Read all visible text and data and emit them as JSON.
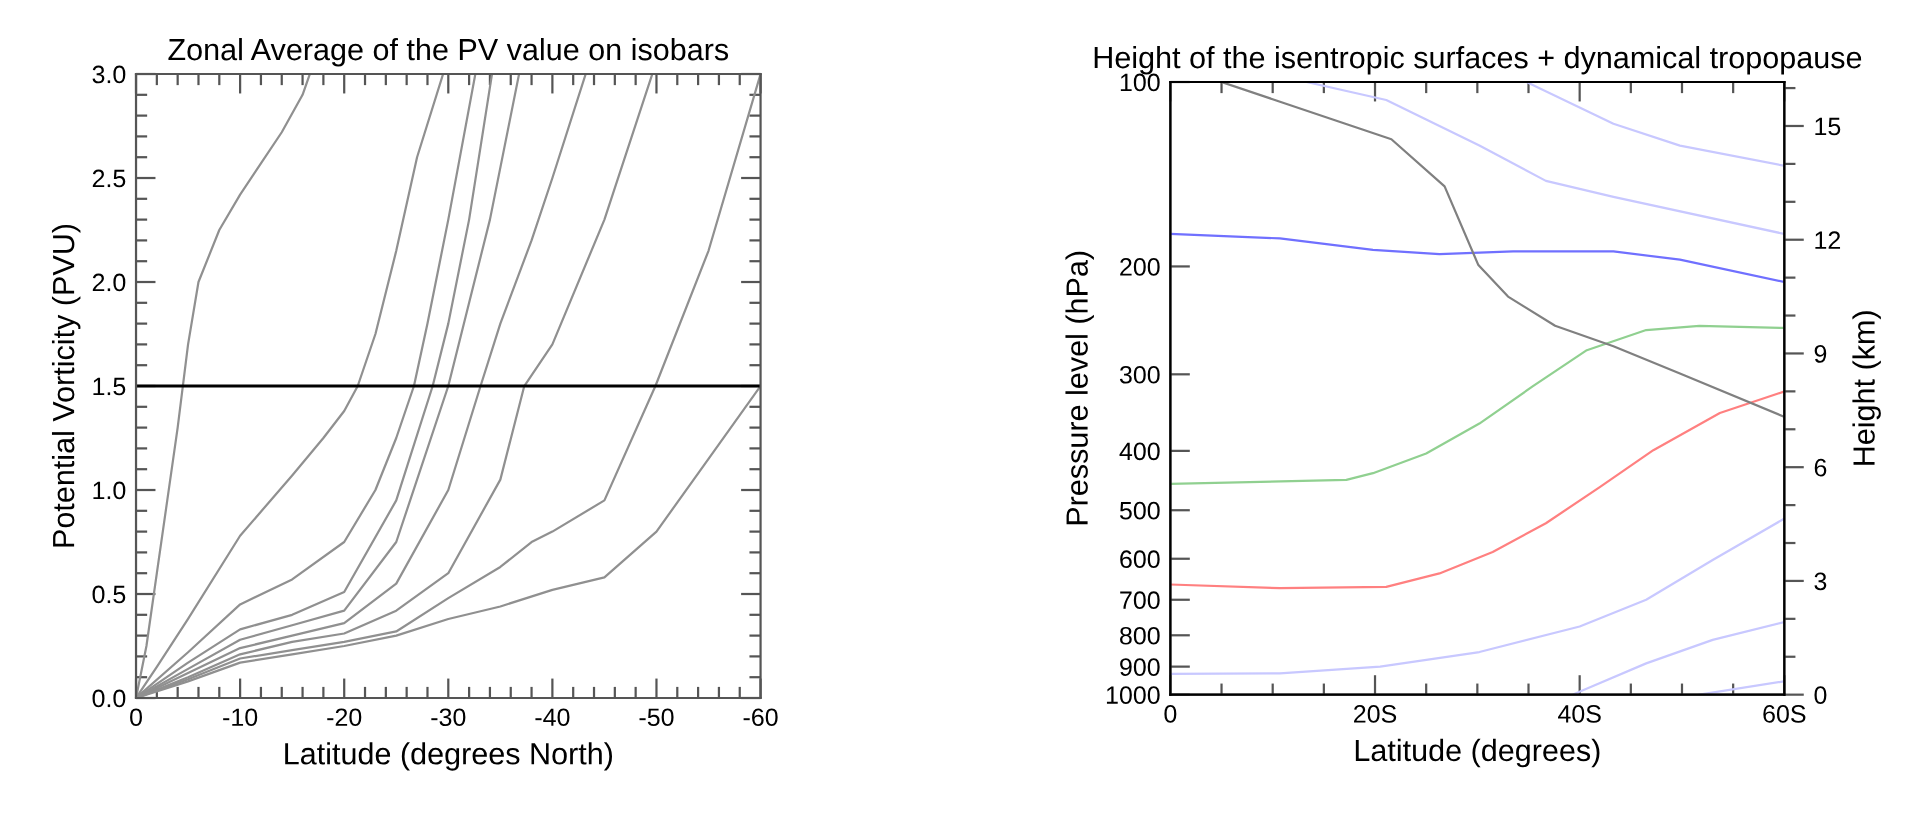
{
  "chart_data": [
    {
      "type": "line",
      "title": "Zonal Average of the PV value on isobars",
      "xlabel": "Latitude (degrees North)",
      "ylabel": "Potential Vorticity (PVU)",
      "xlim": [
        0,
        -60
      ],
      "ylim": [
        0.0,
        3.0
      ],
      "xticks": [
        0,
        -10,
        -20,
        -30,
        -40,
        -50,
        -60,
        {
          "value": -2,
          "label": null
        },
        {
          "value": -4,
          "label": null
        },
        {
          "value": -6,
          "label": null
        },
        {
          "value": -8,
          "label": null
        },
        {
          "value": -12,
          "label": null
        },
        {
          "value": -14,
          "label": null
        },
        {
          "value": -16,
          "label": null
        },
        {
          "value": -18,
          "label": null
        },
        {
          "value": -22,
          "label": null
        },
        {
          "value": -24,
          "label": null
        },
        {
          "value": -26,
          "label": null
        },
        {
          "value": -28,
          "label": null
        },
        {
          "value": -32,
          "label": null
        },
        {
          "value": -34,
          "label": null
        },
        {
          "value": -36,
          "label": null
        },
        {
          "value": -38,
          "label": null
        },
        {
          "value": -42,
          "label": null
        },
        {
          "value": -44,
          "label": null
        },
        {
          "value": -46,
          "label": null
        },
        {
          "value": -48,
          "label": null
        },
        {
          "value": -52,
          "label": null
        },
        {
          "value": -54,
          "label": null
        },
        {
          "value": -56,
          "label": null
        },
        {
          "value": -58,
          "label": null
        }
      ],
      "yticks": [
        {
          "value": 0,
          "label": "0.0"
        },
        0.5,
        {
          "value": 1,
          "label": "1.0"
        },
        1.5,
        {
          "value": 2,
          "label": "2.0"
        },
        2.5,
        {
          "value": 3,
          "label": "3.0"
        },
        {
          "value": 0.1,
          "label": null
        },
        {
          "value": 0.2,
          "label": null
        },
        {
          "value": 0.3,
          "label": null
        },
        {
          "value": 0.4,
          "label": null
        },
        {
          "value": 0.6,
          "label": null
        },
        {
          "value": 0.7,
          "label": null
        },
        {
          "value": 0.8,
          "label": null
        },
        {
          "value": 0.9,
          "label": null
        },
        {
          "value": 1.1,
          "label": null
        },
        {
          "value": 1.2,
          "label": null
        },
        {
          "value": 1.3,
          "label": null
        },
        {
          "value": 1.4,
          "label": null
        },
        {
          "value": 1.6,
          "label": null
        },
        {
          "value": 1.7,
          "label": null
        },
        {
          "value": 1.8,
          "label": null
        },
        {
          "value": 1.9,
          "label": null
        },
        {
          "value": 2.1,
          "label": null
        },
        {
          "value": 2.2,
          "label": null
        },
        {
          "value": 2.3,
          "label": null
        },
        {
          "value": 2.4,
          "label": null
        },
        {
          "value": 2.6,
          "label": null
        },
        {
          "value": 2.7,
          "label": null
        },
        {
          "value": 2.8,
          "label": null
        },
        {
          "value": 2.9,
          "label": null
        }
      ],
      "ref_lines": [
        {
          "axis": "y",
          "value": 1.5,
          "color": "#000000"
        }
      ],
      "series": [
        {
          "color": "#909090",
          "x": [
            0,
            -1,
            -2,
            -3,
            -4,
            -5,
            -6,
            -8,
            -10,
            -12,
            -14,
            -16,
            -16.7
          ],
          "values": [
            0,
            0.25,
            0.6,
            0.95,
            1.3,
            1.7,
            2.0,
            2.25,
            2.42,
            2.57,
            2.72,
            2.9,
            3.0
          ]
        },
        {
          "color": "#909090",
          "x": [
            0,
            -2,
            -5,
            -10,
            -15,
            -18,
            -20,
            -21.3,
            -23,
            -25,
            -27,
            -29.5
          ],
          "values": [
            0,
            0.15,
            0.38,
            0.78,
            1.07,
            1.25,
            1.38,
            1.5,
            1.75,
            2.15,
            2.6,
            3.0
          ]
        },
        {
          "color": "#909090",
          "x": [
            0,
            -5,
            -10,
            -15,
            -20,
            -23,
            -25,
            -26.7,
            -28,
            -30,
            -32.6
          ],
          "values": [
            0,
            0.22,
            0.45,
            0.57,
            0.75,
            1.0,
            1.25,
            1.5,
            1.8,
            2.3,
            3.0
          ]
        },
        {
          "color": "#909090",
          "x": [
            0,
            -5,
            -10,
            -15,
            -20,
            -25,
            -28.5,
            -30,
            -32,
            -34.2
          ],
          "values": [
            0,
            0.17,
            0.33,
            0.4,
            0.51,
            0.95,
            1.5,
            1.8,
            2.3,
            3.0
          ]
        },
        {
          "color": "#909090",
          "x": [
            0,
            -5,
            -10,
            -15,
            -20,
            -25,
            -30,
            -32,
            -34,
            -36.8
          ],
          "values": [
            0,
            0.14,
            0.28,
            0.35,
            0.42,
            0.75,
            1.5,
            1.9,
            2.3,
            3.0
          ]
        },
        {
          "color": "#909090",
          "x": [
            0,
            -5,
            -10,
            -15,
            -20,
            -25,
            -30,
            -33.1,
            -35,
            -38,
            -40,
            -43.2
          ],
          "values": [
            0,
            0.12,
            0.24,
            0.3,
            0.36,
            0.55,
            1.0,
            1.5,
            1.8,
            2.2,
            2.5,
            3.0
          ]
        },
        {
          "color": "#909090",
          "x": [
            0,
            -5,
            -10,
            -15,
            -20,
            -25,
            -30,
            -35,
            -37.3,
            -40,
            -45,
            -49.6
          ],
          "values": [
            0,
            0.1,
            0.21,
            0.27,
            0.31,
            0.42,
            0.6,
            1.05,
            1.5,
            1.7,
            2.3,
            3.0
          ]
        },
        {
          "color": "#909090",
          "x": [
            0,
            -5,
            -10,
            -15,
            -20,
            -25,
            -30,
            -35,
            -38,
            -40,
            -45,
            -49.9,
            -55,
            -60
          ],
          "values": [
            0,
            0.09,
            0.19,
            0.23,
            0.27,
            0.32,
            0.48,
            0.63,
            0.75,
            0.8,
            0.95,
            1.5,
            2.15,
            3.0
          ]
        },
        {
          "color": "#909090",
          "x": [
            0,
            -5,
            -10,
            -15,
            -20,
            -25,
            -30,
            -35,
            -40,
            -45,
            -50,
            -55,
            -60
          ],
          "values": [
            0,
            0.08,
            0.17,
            0.21,
            0.25,
            0.3,
            0.38,
            0.44,
            0.52,
            0.58,
            0.8,
            1.15,
            1.5
          ]
        }
      ]
    },
    {
      "type": "line",
      "title": "Height of the isentropic surfaces + dynamical tropopause",
      "xlabel": "Latitude (degrees)",
      "ylabel": "Pressure level (hPa)",
      "y2label": "Height (km)",
      "log": "y",
      "xlim": [
        0,
        60
      ],
      "ylim": [
        1000,
        100
      ],
      "xticks": [
        0,
        {
          "value": 20,
          "label": "20S"
        },
        {
          "value": 40,
          "label": "40S"
        },
        {
          "value": 60,
          "label": "60S"
        },
        {
          "value": 5,
          "label": null
        },
        {
          "value": 10,
          "label": null
        },
        {
          "value": 15,
          "label": null
        },
        {
          "value": 25,
          "label": null
        },
        {
          "value": 30,
          "label": null
        },
        {
          "value": 35,
          "label": null
        },
        {
          "value": 45,
          "label": null
        },
        {
          "value": 50,
          "label": null
        },
        {
          "value": 55,
          "label": null
        }
      ],
      "yticks": [
        100,
        200,
        300,
        400,
        500,
        600,
        700,
        800,
        900,
        1000
      ],
      "y2lim": [
        0,
        16.16
      ],
      "y2ticks": [
        0,
        3,
        6,
        9,
        12,
        15,
        {
          "value": 1,
          "label": null
        },
        {
          "value": 2,
          "label": null
        },
        {
          "value": 4,
          "label": null
        },
        {
          "value": 5,
          "label": null
        },
        {
          "value": 7,
          "label": null
        },
        {
          "value": 8,
          "label": null
        },
        {
          "value": 10,
          "label": null
        },
        {
          "value": 11,
          "label": null
        },
        {
          "value": 13,
          "label": null
        },
        {
          "value": 14,
          "label": null
        },
        {
          "value": 16,
          "label": null
        }
      ],
      "tick_labels": "xy",
      "series": [
        {
          "color": "#c8c8ff",
          "x": [
            34.8,
            43.3,
            49.8,
            60
          ],
          "values": [
            100,
            117,
            127,
            137
          ]
        },
        {
          "color": "#c8c8ff",
          "x": [
            13.3,
            21.1,
            30.2,
            36.7,
            43.3,
            60
          ],
          "values": [
            100,
            107,
            127,
            145,
            154,
            177
          ]
        },
        {
          "color": "#7070ff",
          "x": [
            0,
            10.7,
            19.8,
            26.3,
            33.5,
            43.3,
            49.8,
            60
          ],
          "values": [
            177,
            180,
            188,
            191,
            189,
            189,
            195,
            212
          ]
        },
        {
          "color": "#90d090",
          "x": [
            0,
            17.2,
            19.8,
            25.0,
            30.2,
            35.4,
            40.7,
            46.5,
            51.7,
            60
          ],
          "values": [
            453,
            446,
            435,
            404,
            361,
            314,
            274,
            254,
            250,
            252
          ]
        },
        {
          "color": "#ff8080",
          "x": [
            0,
            10.7,
            21.1,
            26.3,
            31.5,
            36.7,
            42.0,
            47.2,
            53.7,
            60
          ],
          "values": [
            661,
            670,
            667,
            634,
            585,
            525,
            458,
            399,
            347,
            320
          ]
        },
        {
          "color": "#c8c8ff",
          "x": [
            0,
            10.7,
            20.5,
            30.2,
            40,
            46.5,
            53,
            60
          ],
          "values": [
            925,
            923,
            900,
            852,
            774,
            700,
            603,
            516
          ]
        },
        {
          "color": "#c8c8ff",
          "x": [
            39.3,
            46.5,
            53,
            60
          ],
          "values": [
            1000,
            889,
            814,
            761
          ]
        },
        {
          "color": "#c8c8ff",
          "x": [
            51.7,
            60
          ],
          "values": [
            1000,
            951
          ]
        },
        {
          "color": "#808080",
          "x": [
            5.0,
            21.6,
            26.8,
            30.1,
            33.0,
            37.6,
            43.3,
            49.8,
            60
          ],
          "values": [
            100,
            124,
            148,
            199,
            224,
            250,
            270,
            299,
            352
          ]
        }
      ]
    }
  ]
}
